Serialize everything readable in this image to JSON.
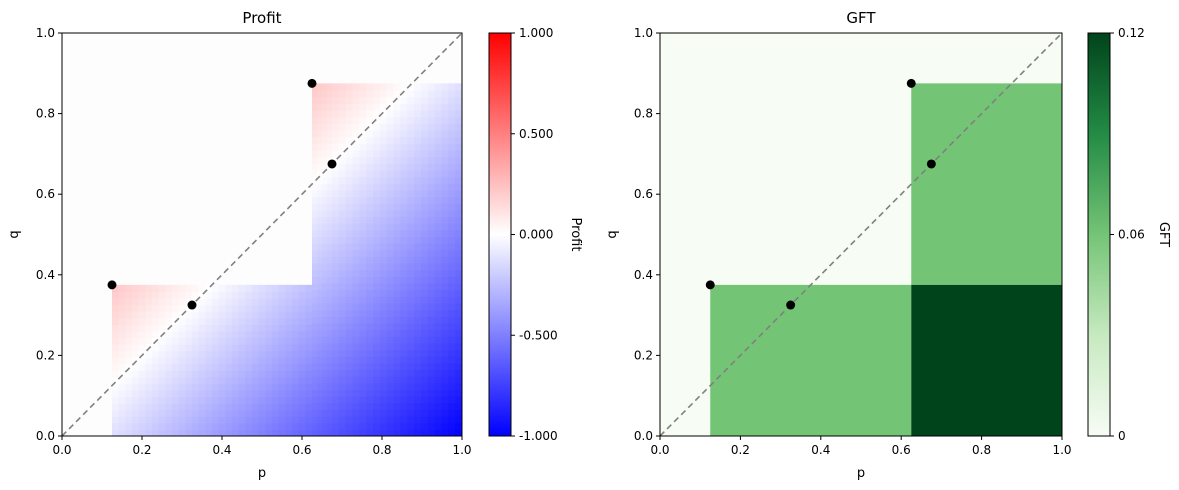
{
  "chart_data": [
    {
      "type": "heatmap",
      "title": "Profit",
      "xlabel": "p",
      "ylabel": "q",
      "xlim": [
        0.0,
        1.0
      ],
      "ylim": [
        0.0,
        1.0
      ],
      "x_ticks": [
        "0.0",
        "0.2",
        "0.4",
        "0.6",
        "0.8",
        "1.0"
      ],
      "y_ticks": [
        "0.0",
        "0.2",
        "0.4",
        "0.6",
        "0.8",
        "1.0"
      ],
      "grid": false,
      "diagonal_line": {
        "from": [
          0,
          0
        ],
        "to": [
          1,
          1
        ],
        "style": "dashed",
        "color": "#808080"
      },
      "colorscale": {
        "name": "bwr",
        "min": -1.0,
        "max": 1.0,
        "colors": [
          "#0000ff",
          "#ffffff",
          "#ff0000"
        ]
      },
      "colorbar": {
        "label": "Profit",
        "ticks": [
          {
            "value": 1.0,
            "label": "1.000"
          },
          {
            "value": 0.5,
            "label": "0.500"
          },
          {
            "value": 0.0,
            "label": "0.000"
          },
          {
            "value": -0.5,
            "label": "-0.500"
          },
          {
            "value": -1.0,
            "label": "-1.000"
          }
        ]
      },
      "regions": [
        {
          "x": [
            0.125,
            0.325
          ],
          "y": [
            0.125,
            0.375
          ],
          "value_formula": "q - p (above diagonal)"
        },
        {
          "x": [
            0.125,
            0.325
          ],
          "y": [
            0.0,
            0.375
          ],
          "value_formula": "q - p"
        },
        {
          "x": [
            0.325,
            0.625
          ],
          "y": [
            0.0,
            0.375
          ],
          "value_formula": "q - p"
        },
        {
          "x": [
            0.625,
            0.675
          ],
          "y": [
            0.0,
            0.875
          ],
          "value_formula": "q - p"
        },
        {
          "x": [
            0.675,
            1.0
          ],
          "y": [
            0.0,
            0.875
          ],
          "value_formula": "q - p"
        }
      ],
      "points": [
        {
          "p": 0.125,
          "q": 0.375
        },
        {
          "p": 0.325,
          "q": 0.325
        },
        {
          "p": 0.625,
          "q": 0.875
        },
        {
          "p": 0.675,
          "q": 0.675
        }
      ]
    },
    {
      "type": "heatmap",
      "title": "GFT",
      "xlabel": "p",
      "ylabel": "q",
      "xlim": [
        0.0,
        1.0
      ],
      "ylim": [
        0.0,
        1.0
      ],
      "x_ticks": [
        "0.0",
        "0.2",
        "0.4",
        "0.6",
        "0.8",
        "1.0"
      ],
      "y_ticks": [
        "0.0",
        "0.2",
        "0.4",
        "0.6",
        "0.8",
        "1.0"
      ],
      "grid": false,
      "diagonal_line": {
        "from": [
          0,
          0
        ],
        "to": [
          1,
          1
        ],
        "style": "dashed",
        "color": "#808080"
      },
      "colorscale": {
        "name": "Greens",
        "min": 0.0,
        "max": 0.12,
        "colors": [
          "#f7fcf5",
          "#c7e9c0",
          "#74c476",
          "#238b45",
          "#00441b"
        ]
      },
      "colorbar": {
        "label": "GFT",
        "ticks": [
          {
            "value": 0.12,
            "label": "0.12"
          },
          {
            "value": 0.06,
            "label": "0.06"
          },
          {
            "value": 0.0,
            "label": "0"
          }
        ]
      },
      "background_value": 0.0,
      "cells": [
        {
          "x": [
            0.125,
            0.625
          ],
          "y": [
            0.0,
            0.375
          ],
          "value": 0.06
        },
        {
          "x": [
            0.625,
            1.0
          ],
          "y": [
            0.375,
            0.875
          ],
          "value": 0.06
        },
        {
          "x": [
            0.625,
            1.0
          ],
          "y": [
            0.0,
            0.375
          ],
          "value": 0.12
        }
      ],
      "points": [
        {
          "p": 0.125,
          "q": 0.375
        },
        {
          "p": 0.325,
          "q": 0.325
        },
        {
          "p": 0.625,
          "q": 0.875
        },
        {
          "p": 0.675,
          "q": 0.675
        }
      ]
    }
  ]
}
